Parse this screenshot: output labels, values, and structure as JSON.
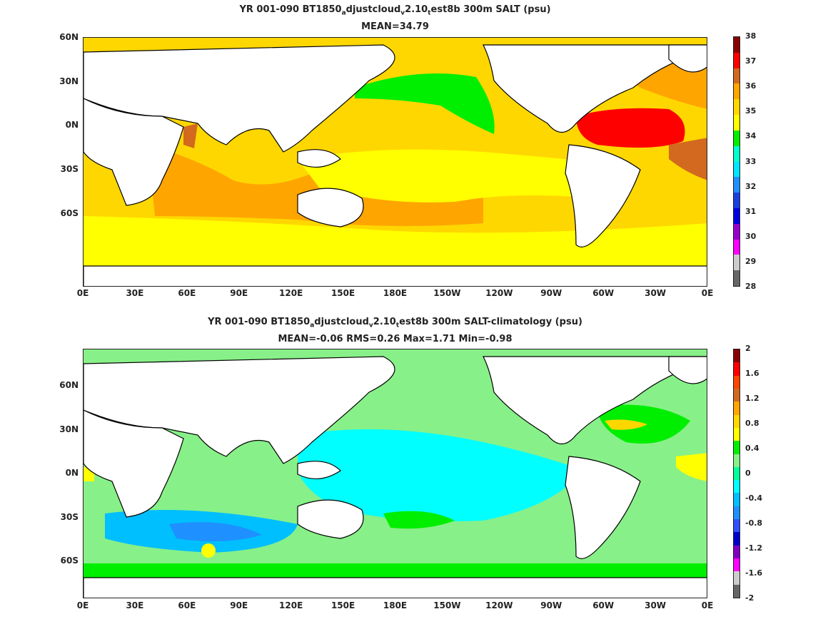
{
  "panels": [
    {
      "title_parts": [
        "YR 001-090 BT1850",
        "a",
        "djustcloud",
        "v",
        "2.10",
        "t",
        "est8b 300m SALT (psu)"
      ],
      "subtitle": "MEAN=34.79",
      "colorbar": {
        "ticks": [
          "38",
          "37",
          "36",
          "35",
          "34",
          "33",
          "32",
          "31",
          "30",
          "29",
          "28"
        ],
        "colors": [
          "#8b0000",
          "#ff0000",
          "#d2691e",
          "#ffa500",
          "#ffd700",
          "#ffff00",
          "#00ee00",
          "#00ffcc",
          "#00e5ff",
          "#1e90ff",
          "#1a40e0",
          "#0000e0",
          "#9900cc",
          "#ff00ff",
          "#cccccc",
          "#666666"
        ]
      }
    },
    {
      "title_parts": [
        "YR 001-090 BT1850",
        "a",
        "djustcloud",
        "v",
        "2.10",
        "t",
        "est8b 300m SALT-climatology (psu)"
      ],
      "subtitle": "MEAN=-0.06   RMS=0.26   Max=1.71   Min=-0.98",
      "colorbar": {
        "ticks": [
          "2",
          "1.6",
          "1.2",
          "0.8",
          "0.4",
          "0",
          "-0.4",
          "-0.8",
          "-1.2",
          "-1.6",
          "-2"
        ],
        "colors": [
          "#8b0000",
          "#ff0000",
          "#ff4500",
          "#d2691e",
          "#ffa500",
          "#ffd700",
          "#ffff00",
          "#00ee00",
          "#88f088",
          "#00ff99",
          "#00ffff",
          "#00bfff",
          "#1e90ff",
          "#3050ff",
          "#0000cc",
          "#8000c0",
          "#ff00ff",
          "#cccccc",
          "#666666"
        ]
      }
    }
  ],
  "axes": {
    "lat_ticks": [
      "60N",
      "30N",
      "0N",
      "30S",
      "60S"
    ],
    "lon_ticks": [
      "0E",
      "30E",
      "60E",
      "90E",
      "120E",
      "150E",
      "180E",
      "150W",
      "120W",
      "90W",
      "60W",
      "30W",
      "0E"
    ]
  },
  "map_colors": {
    "top_background": "#ffd700",
    "top_high": "#ffa500",
    "top_higher": "#d2691e",
    "top_max": "#ff0000",
    "top_med": "#8b0000",
    "top_low": "#ffff00",
    "top_fresh": "#00ee00",
    "bottom_background": "#88f088",
    "bottom_neg": "#00ffff",
    "bottom_neg2": "#00bfff",
    "bottom_neg3": "#1e90ff",
    "bottom_pos": "#00ee00",
    "bottom_pos2": "#ffd700",
    "bottom_pos3": "#ffff00",
    "land": "#ffffff",
    "coast": "#000000"
  }
}
